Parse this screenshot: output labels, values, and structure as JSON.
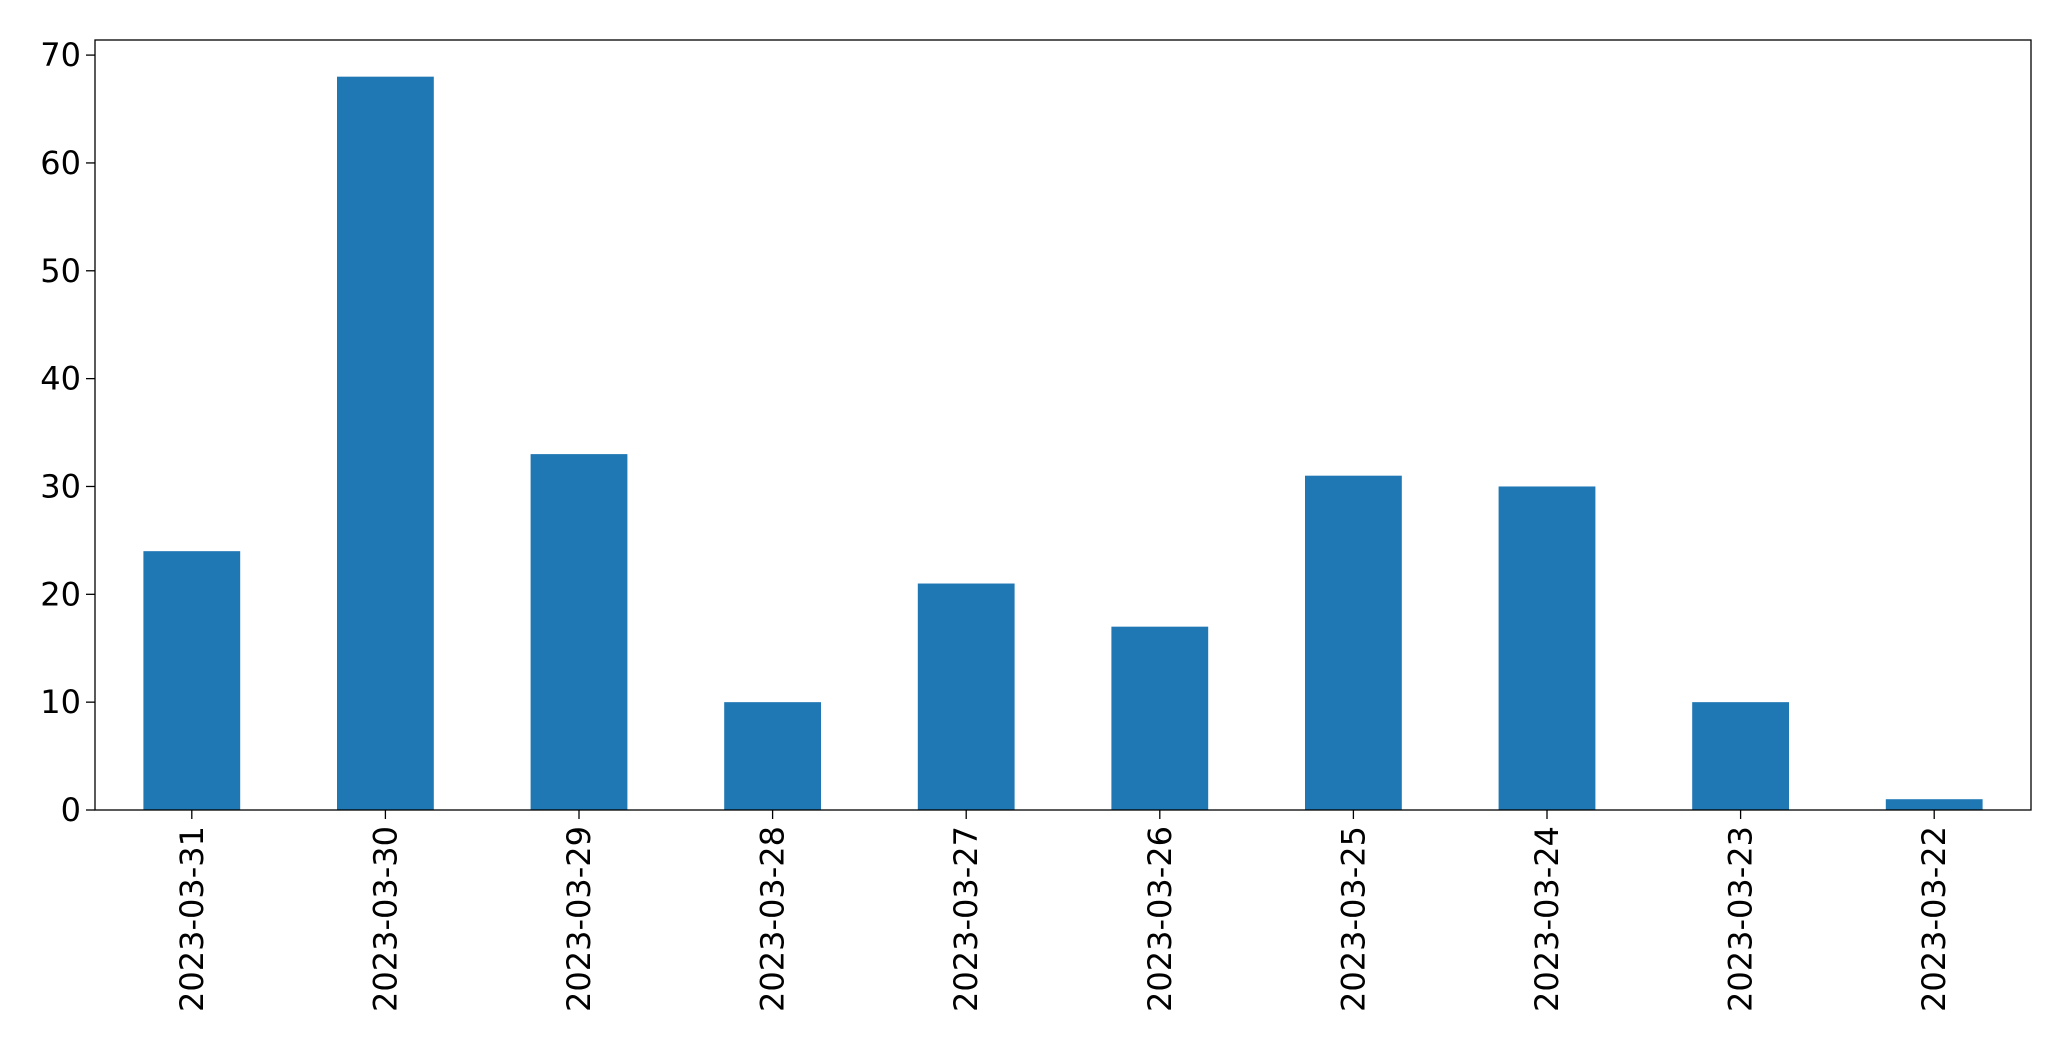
{
  "chart_data": {
    "type": "bar",
    "categories": [
      "2023-03-31",
      "2023-03-30",
      "2023-03-29",
      "2023-03-28",
      "2023-03-27",
      "2023-03-26",
      "2023-03-25",
      "2023-03-24",
      "2023-03-23",
      "2023-03-22"
    ],
    "values": [
      24,
      68,
      33,
      10,
      21,
      17,
      31,
      30,
      10,
      1
    ],
    "color": "#1f77b4",
    "ylim": [
      0,
      71.4
    ],
    "yticks": [
      0,
      10,
      20,
      30,
      40,
      50,
      60,
      70
    ],
    "grid": false
  }
}
